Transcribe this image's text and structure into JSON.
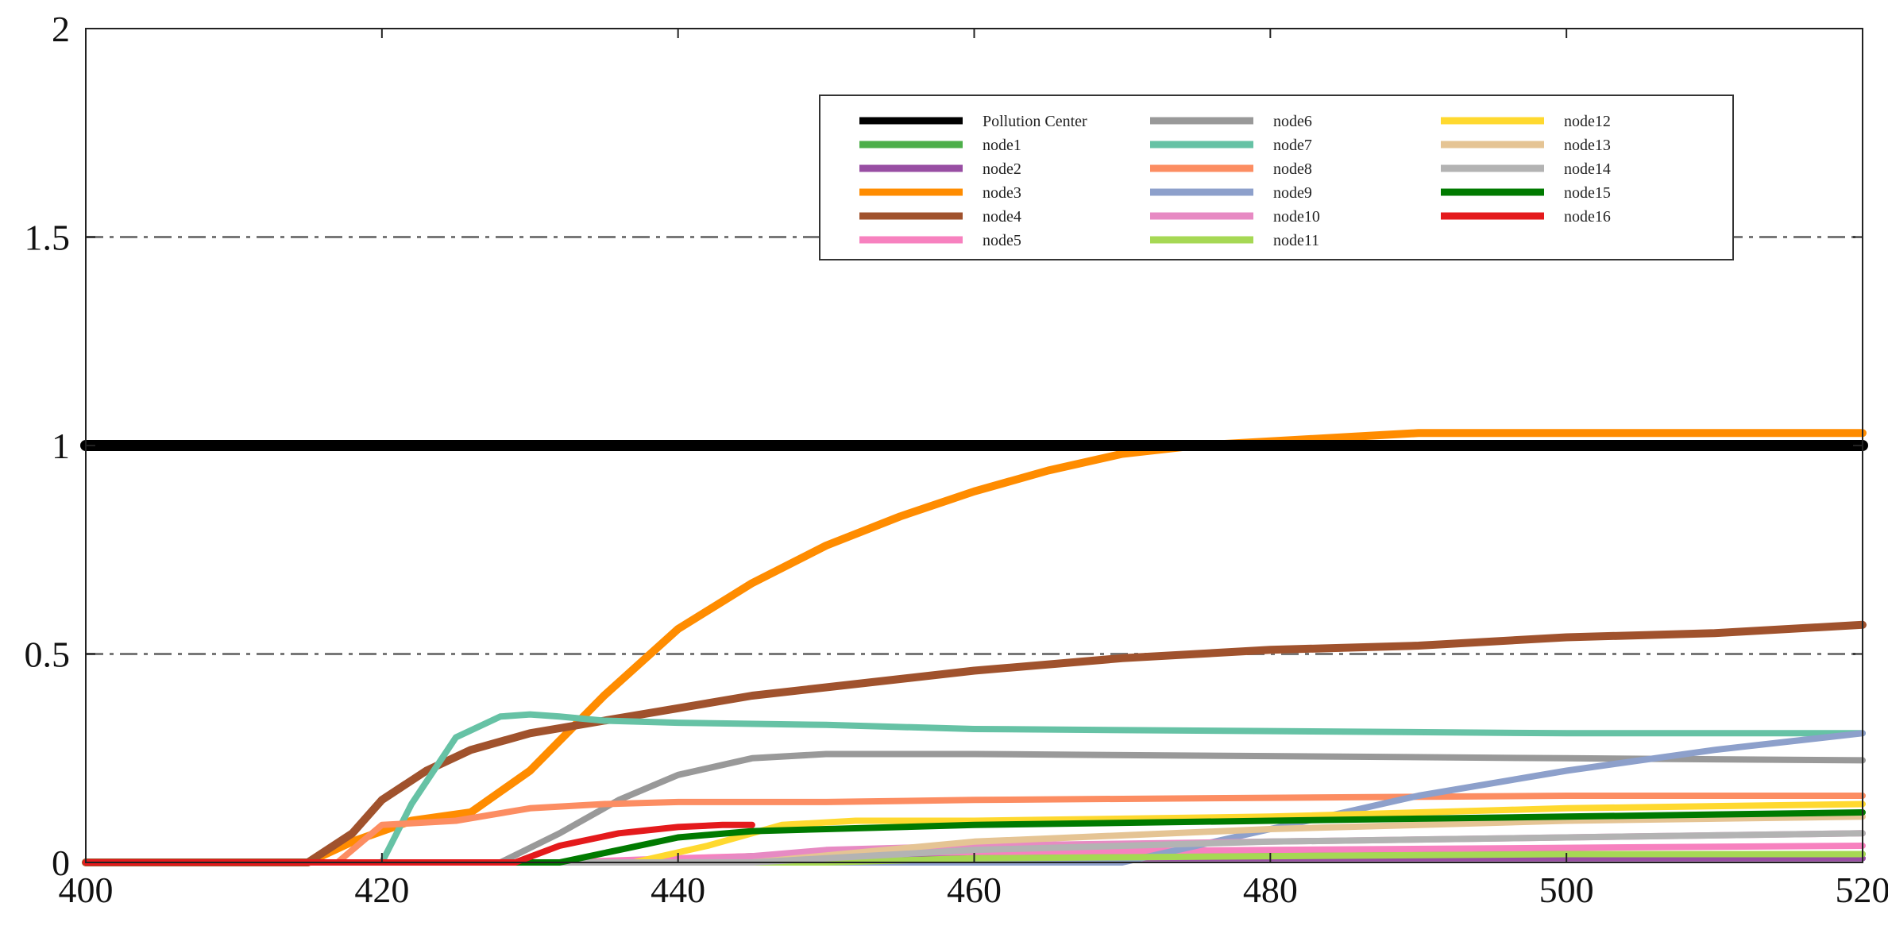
{
  "chart_data": {
    "type": "line",
    "title": "",
    "xlabel": "",
    "ylabel": "",
    "xlim": [
      400,
      520
    ],
    "ylim": [
      0,
      2
    ],
    "x_ticks": [
      "400",
      "420",
      "440",
      "460",
      "480",
      "500",
      "520"
    ],
    "y_ticks": [
      "0",
      "0.5",
      "1",
      "1.5",
      "2"
    ],
    "reference_lines": [
      0.5,
      1.5
    ],
    "grid": false,
    "legend_position": "top-right",
    "legend_columns": 3,
    "series": [
      {
        "name": "Pollution Center",
        "color": "#000000",
        "x": [
          400,
          520
        ],
        "y": [
          1.0,
          1.0
        ]
      },
      {
        "name": "node1",
        "color": "#4daf4a",
        "x": [
          400,
          435,
          445,
          460,
          480,
          500,
          520
        ],
        "y": [
          0,
          0,
          0.015,
          0.02,
          0.02,
          0.02,
          0.02
        ]
      },
      {
        "name": "node2",
        "color": "#984ea3",
        "x": [
          400,
          440,
          460,
          480,
          500,
          520
        ],
        "y": [
          0,
          0,
          0.01,
          0.01,
          0.01,
          0.01
        ]
      },
      {
        "name": "node3",
        "color": "#ff8c00",
        "x": [
          400,
          415,
          418,
          422,
          426,
          430,
          435,
          440,
          445,
          450,
          455,
          460,
          465,
          470,
          475,
          480,
          485,
          490,
          500,
          510,
          520
        ],
        "y": [
          0,
          0,
          0.05,
          0.1,
          0.12,
          0.22,
          0.4,
          0.56,
          0.67,
          0.76,
          0.83,
          0.89,
          0.94,
          0.98,
          1.0,
          1.01,
          1.02,
          1.03,
          1.03,
          1.03,
          1.03
        ]
      },
      {
        "name": "node4",
        "color": "#a0522d",
        "x": [
          400,
          415,
          418,
          420,
          423,
          426,
          430,
          435,
          440,
          445,
          450,
          460,
          470,
          480,
          490,
          500,
          510,
          515,
          520
        ],
        "y": [
          0,
          0,
          0.07,
          0.15,
          0.22,
          0.27,
          0.31,
          0.34,
          0.37,
          0.4,
          0.42,
          0.46,
          0.49,
          0.51,
          0.52,
          0.54,
          0.55,
          0.56,
          0.57
        ]
      },
      {
        "name": "node5",
        "color": "#f781bf",
        "x": [
          400,
          432,
          440,
          450,
          460,
          480,
          500,
          520
        ],
        "y": [
          0,
          0,
          0.01,
          0.02,
          0.025,
          0.03,
          0.035,
          0.04
        ]
      },
      {
        "name": "node6",
        "color": "#999999",
        "x": [
          400,
          428,
          432,
          436,
          440,
          445,
          450,
          460,
          480,
          500,
          520
        ],
        "y": [
          0,
          0,
          0.07,
          0.15,
          0.21,
          0.25,
          0.26,
          0.26,
          0.255,
          0.25,
          0.245
        ]
      },
      {
        "name": "node7",
        "color": "#66c2a5",
        "x": [
          400,
          420,
          422,
          425,
          428,
          430,
          432,
          435,
          440,
          450,
          460,
          480,
          500,
          520
        ],
        "y": [
          0,
          0,
          0.14,
          0.3,
          0.35,
          0.355,
          0.35,
          0.34,
          0.335,
          0.33,
          0.32,
          0.315,
          0.31,
          0.31
        ]
      },
      {
        "name": "node8",
        "color": "#fc8d62",
        "x": [
          400,
          417,
          420,
          425,
          430,
          435,
          440,
          450,
          460,
          480,
          500,
          520
        ],
        "y": [
          0,
          0,
          0.09,
          0.1,
          0.13,
          0.14,
          0.145,
          0.145,
          0.15,
          0.155,
          0.16,
          0.16
        ]
      },
      {
        "name": "node9",
        "color": "#8da0cb",
        "x": [
          400,
          470,
          480,
          490,
          500,
          510,
          520
        ],
        "y": [
          0,
          0,
          0.08,
          0.16,
          0.22,
          0.27,
          0.31
        ]
      },
      {
        "name": "node10",
        "color": "#e78ac3",
        "x": [
          400,
          440,
          450,
          460,
          480,
          500,
          520
        ],
        "y": [
          0,
          0,
          0.03,
          0.04,
          0.05,
          0.06,
          0.07
        ]
      },
      {
        "name": "node11",
        "color": "#a6d854",
        "x": [
          400,
          450,
          460,
          480,
          500,
          520
        ],
        "y": [
          0,
          0,
          0.01,
          0.015,
          0.02,
          0.02
        ]
      },
      {
        "name": "node12",
        "color": "#ffd92f",
        "x": [
          400,
          437,
          442,
          447,
          452,
          460,
          480,
          500,
          520
        ],
        "y": [
          0,
          0,
          0.04,
          0.09,
          0.1,
          0.1,
          0.11,
          0.13,
          0.14
        ]
      },
      {
        "name": "node13",
        "color": "#e5c494",
        "x": [
          400,
          445,
          460,
          480,
          500,
          520
        ],
        "y": [
          0,
          0,
          0.05,
          0.08,
          0.1,
          0.11
        ]
      },
      {
        "name": "node14",
        "color": "#b3b3b3",
        "x": [
          400,
          445,
          460,
          480,
          500,
          520
        ],
        "y": [
          0,
          0,
          0.03,
          0.05,
          0.06,
          0.07
        ]
      },
      {
        "name": "node15",
        "color": "#007a00",
        "x": [
          400,
          432,
          436,
          440,
          445,
          450,
          460,
          480,
          500,
          520
        ],
        "y": [
          0,
          0,
          0.03,
          0.06,
          0.075,
          0.08,
          0.09,
          0.1,
          0.11,
          0.12
        ]
      },
      {
        "name": "node16",
        "color": "#e41a1c",
        "x": [
          400,
          429,
          432,
          436,
          440,
          443,
          445
        ],
        "y": [
          0,
          0,
          0.04,
          0.07,
          0.085,
          0.09,
          0.09
        ]
      }
    ]
  }
}
